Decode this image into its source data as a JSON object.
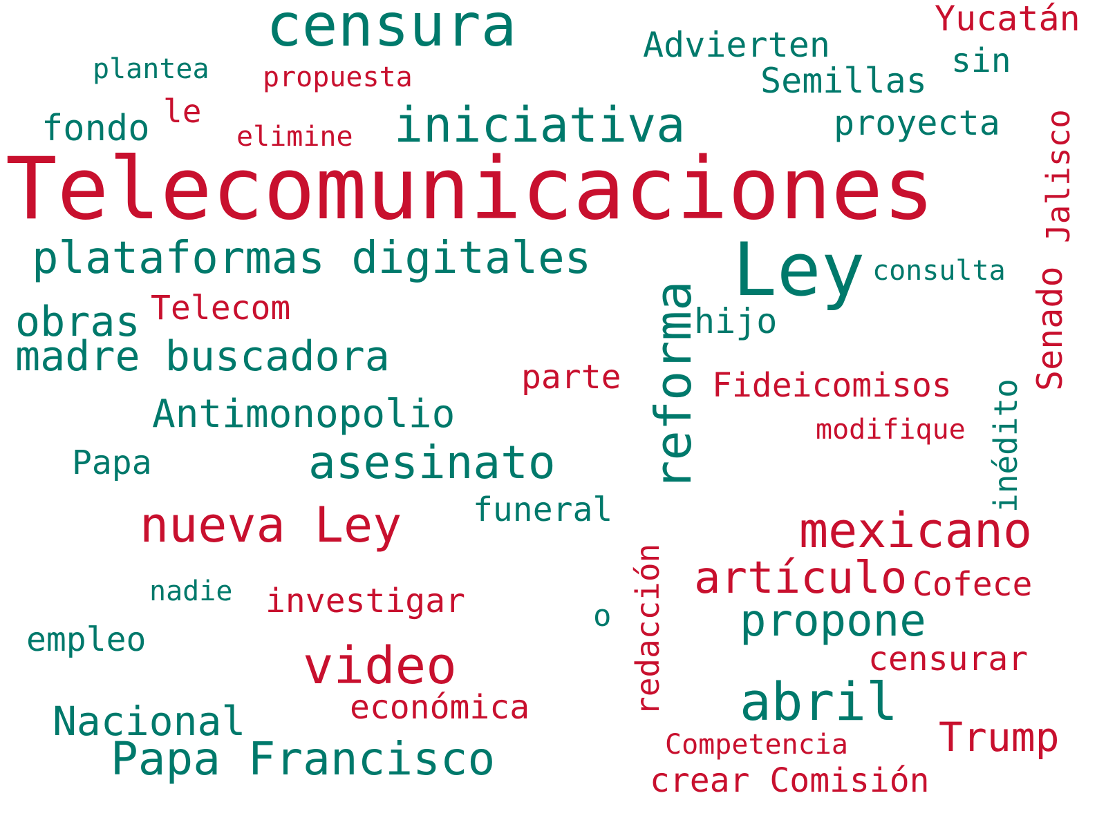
{
  "colors": {
    "red": "#c8102e",
    "teal": "#00796b",
    "background": "#ffffff"
  },
  "words": {
    "telecomunicaciones": "Telecomunicaciones",
    "censura": "censura",
    "ley": "Ley",
    "iniciativa": "iniciativa",
    "plataformas_digitales": "plataformas digitales",
    "reforma": "reforma",
    "madre_buscadora": "madre buscadora",
    "obras": "obras",
    "asesinato": "asesinato",
    "nueva_ley": "nueva Ley",
    "mexicano": "mexicano",
    "articulo": "artículo",
    "propone": "propone",
    "video": "video",
    "abril": "abril",
    "papa_francisco": "Papa Francisco",
    "nacional": "Nacional",
    "antimonopolio": "Antimonopolio",
    "advierten": "Advierten",
    "semillas": "Semillas",
    "proyecta": "proyecta",
    "fondo": "fondo",
    "yucatan": "Yucatán",
    "sin": "sin",
    "plantea": "plantea",
    "propuesta": "propuesta",
    "le": "le",
    "elimine": "elimine",
    "jalisco": "Jalisco",
    "consulta": "consulta",
    "telecom": "Telecom",
    "hijo": "hijo",
    "senado": "Senado",
    "parte": "parte",
    "fideicomisos": "Fideicomisos",
    "inedito": "inédito",
    "modifique": "modifique",
    "papa": "Papa",
    "funeral": "funeral",
    "redaccion": "redacción",
    "cofece": "Cofece",
    "nadie": "nadie",
    "investigar": "investigar",
    "o": "o",
    "empleo": "empleo",
    "censurar": "censurar",
    "economica": "económica",
    "trump": "Trump",
    "competencia": "Competencia",
    "crear_comision": "crear Comisión"
  }
}
